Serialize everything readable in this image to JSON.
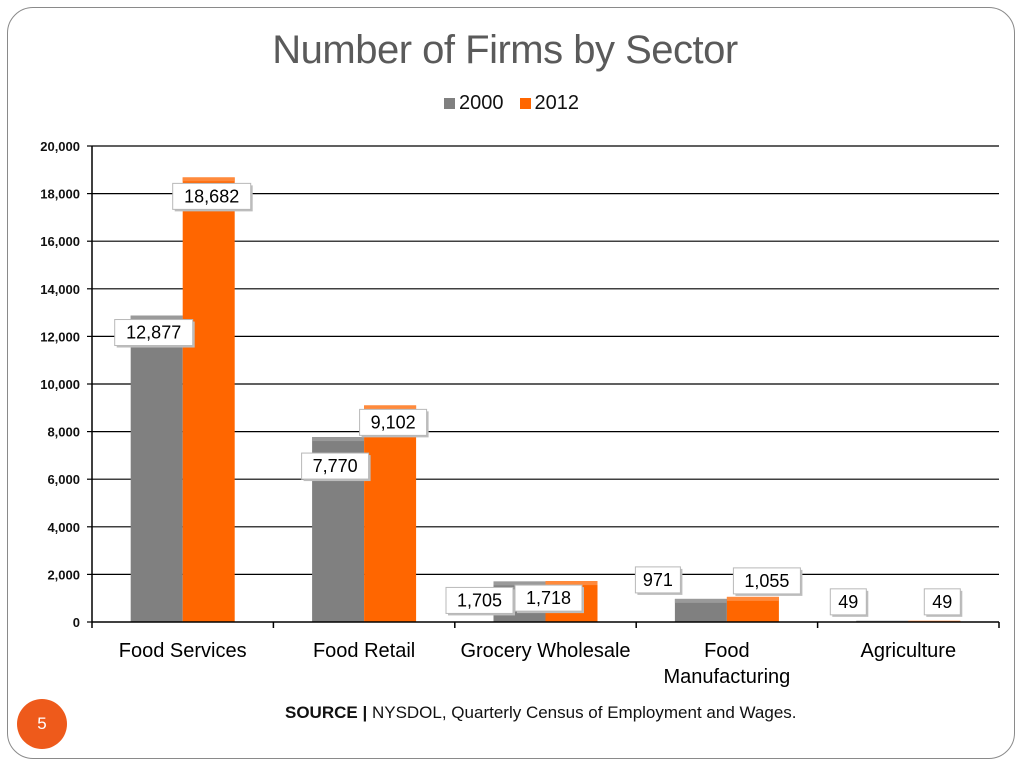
{
  "slide": {
    "title": "Number of Firms by Sector",
    "source_label": "SOURCE |",
    "source_text": "NYSDOL, Quarterly Census of Employment and Wages.",
    "page_number": "5",
    "badge_color": "#ee5a1b"
  },
  "chart_data": {
    "type": "bar",
    "title": "Number of Firms by Sector",
    "categories": [
      "Food Services",
      "Food Retail",
      "Grocery Wholesale",
      "Food Manufacturing",
      "Agriculture"
    ],
    "category_lines": [
      [
        "Food Services"
      ],
      [
        "Food Retail"
      ],
      [
        "Grocery Wholesale"
      ],
      [
        "Food",
        "Manufacturing"
      ],
      [
        "Agriculture"
      ]
    ],
    "series": [
      {
        "name": "2000",
        "color": "#808080",
        "values": [
          12877,
          7770,
          1705,
          971,
          49
        ],
        "labels": [
          "12,877",
          "7,770",
          "1,705",
          "971",
          "49"
        ]
      },
      {
        "name": "2012",
        "color": "#ff6600",
        "values": [
          18682,
          9102,
          1718,
          1055,
          49
        ],
        "labels": [
          "18,682",
          "9,102",
          "1,718",
          "1,055",
          "49"
        ]
      }
    ],
    "yticks": [
      0,
      2000,
      4000,
      6000,
      8000,
      10000,
      12000,
      14000,
      16000,
      18000,
      20000
    ],
    "ytick_labels": [
      "0",
      "2,000",
      "4,000",
      "6,000",
      "8,000",
      "10,000",
      "12,000",
      "14,000",
      "16,000",
      "18,000",
      "20,000"
    ],
    "ylim": [
      0,
      20000
    ],
    "xlabel": "",
    "ylabel": "",
    "grid": true,
    "legend_position": "top-center"
  }
}
